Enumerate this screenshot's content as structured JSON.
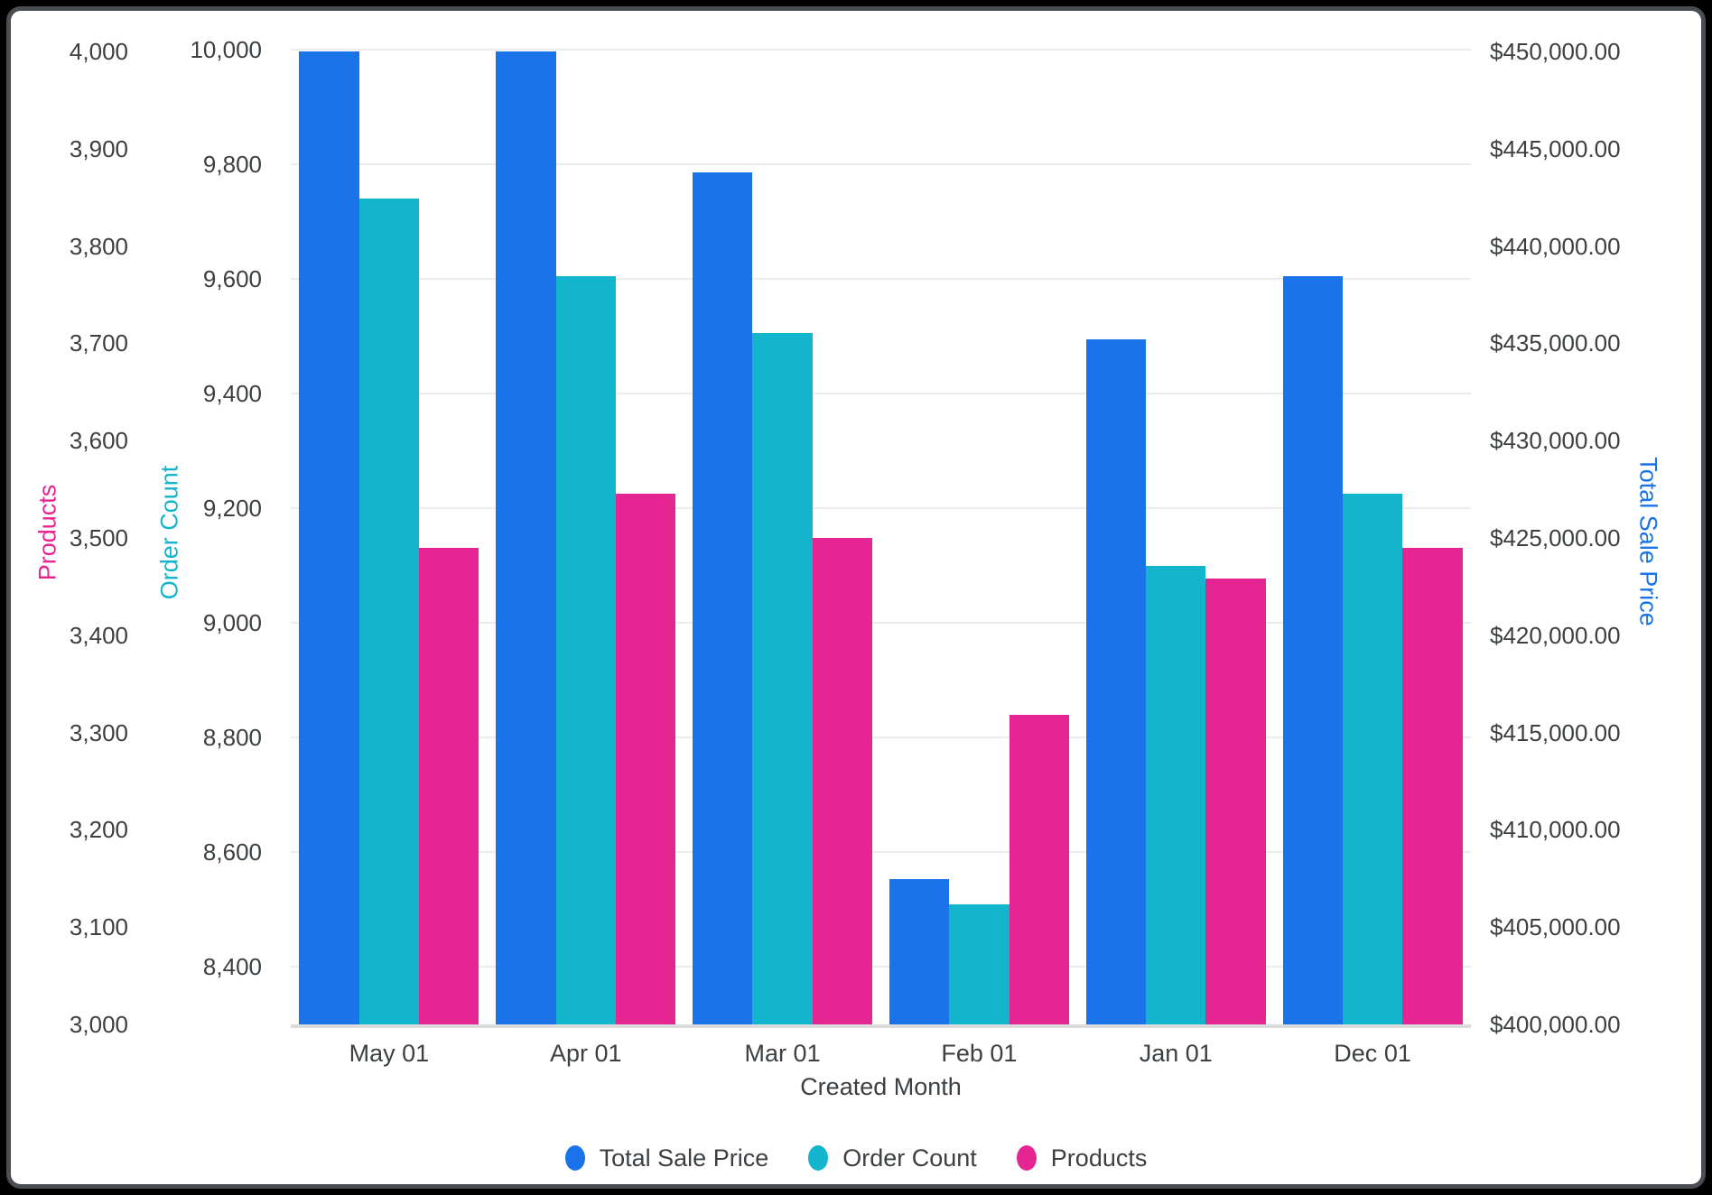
{
  "chart_data": {
    "type": "bar",
    "title": "",
    "xlabel": "Created Month",
    "grid": "horizontal gridlines aligned to Order Count ticks",
    "legend_position": "bottom-center",
    "tick_color": "#3c4043",
    "categories": [
      "May 01",
      "Apr 01",
      "Mar 01",
      "Feb 01",
      "Jan 01",
      "Dec 01"
    ],
    "series": [
      {
        "name": "Total Sale Price",
        "axis": "sale",
        "color": "#1a73e8",
        "values": [
          450000,
          450000,
          443800,
          407450,
          435200,
          438450
        ]
      },
      {
        "name": "Order Count",
        "axis": "order",
        "color": "#12b5cb",
        "values": [
          9740,
          9605,
          9505,
          8510,
          9100,
          9225
        ]
      },
      {
        "name": "Products",
        "axis": "products",
        "color": "#e52592",
        "values": [
          3490,
          3545,
          3500,
          3318,
          3458,
          3490
        ]
      }
    ],
    "axes": {
      "products": {
        "title": "Products",
        "side": "left-outer",
        "color": "#e52592",
        "min": 3000,
        "max": 4012,
        "ticks": [
          {
            "label": "4,000",
            "value": 4000
          },
          {
            "label": "3,900",
            "value": 3900
          },
          {
            "label": "3,800",
            "value": 3800
          },
          {
            "label": "3,700",
            "value": 3700
          },
          {
            "label": "3,600",
            "value": 3600
          },
          {
            "label": "3,500",
            "value": 3500
          },
          {
            "label": "3,400",
            "value": 3400
          },
          {
            "label": "3,300",
            "value": 3300
          },
          {
            "label": "3,200",
            "value": 3200
          },
          {
            "label": "3,100",
            "value": 3100
          },
          {
            "label": "3,000",
            "value": 3000
          }
        ]
      },
      "order": {
        "title": "Order Count",
        "side": "left-inner",
        "color": "#12b5cb",
        "min": 8300,
        "max": 10017,
        "ticks": [
          {
            "label": "10,000",
            "value": 10000
          },
          {
            "label": "9,800",
            "value": 9800
          },
          {
            "label": "9,600",
            "value": 9600
          },
          {
            "label": "9,400",
            "value": 9400
          },
          {
            "label": "9,200",
            "value": 9200
          },
          {
            "label": "9,000",
            "value": 9000
          },
          {
            "label": "8,800",
            "value": 8800
          },
          {
            "label": "8,600",
            "value": 8600
          },
          {
            "label": "8,400",
            "value": 8400
          }
        ]
      },
      "sale": {
        "title": "Total Sale Price",
        "side": "right",
        "color": "#1a73e8",
        "min": 400000,
        "max": 450600,
        "ticks": [
          {
            "label": "$450,000.00",
            "value": 450000
          },
          {
            "label": "$445,000.00",
            "value": 445000
          },
          {
            "label": "$440,000.00",
            "value": 440000
          },
          {
            "label": "$435,000.00",
            "value": 435000
          },
          {
            "label": "$430,000.00",
            "value": 430000
          },
          {
            "label": "$425,000.00",
            "value": 425000
          },
          {
            "label": "$420,000.00",
            "value": 420000
          },
          {
            "label": "$415,000.00",
            "value": 415000
          },
          {
            "label": "$410,000.00",
            "value": 410000
          },
          {
            "label": "$405,000.00",
            "value": 405000
          },
          {
            "label": "$400,000.00",
            "value": 400000
          }
        ]
      }
    },
    "legend": {
      "entries": [
        "Total Sale Price",
        "Order Count",
        "Products"
      ]
    }
  }
}
